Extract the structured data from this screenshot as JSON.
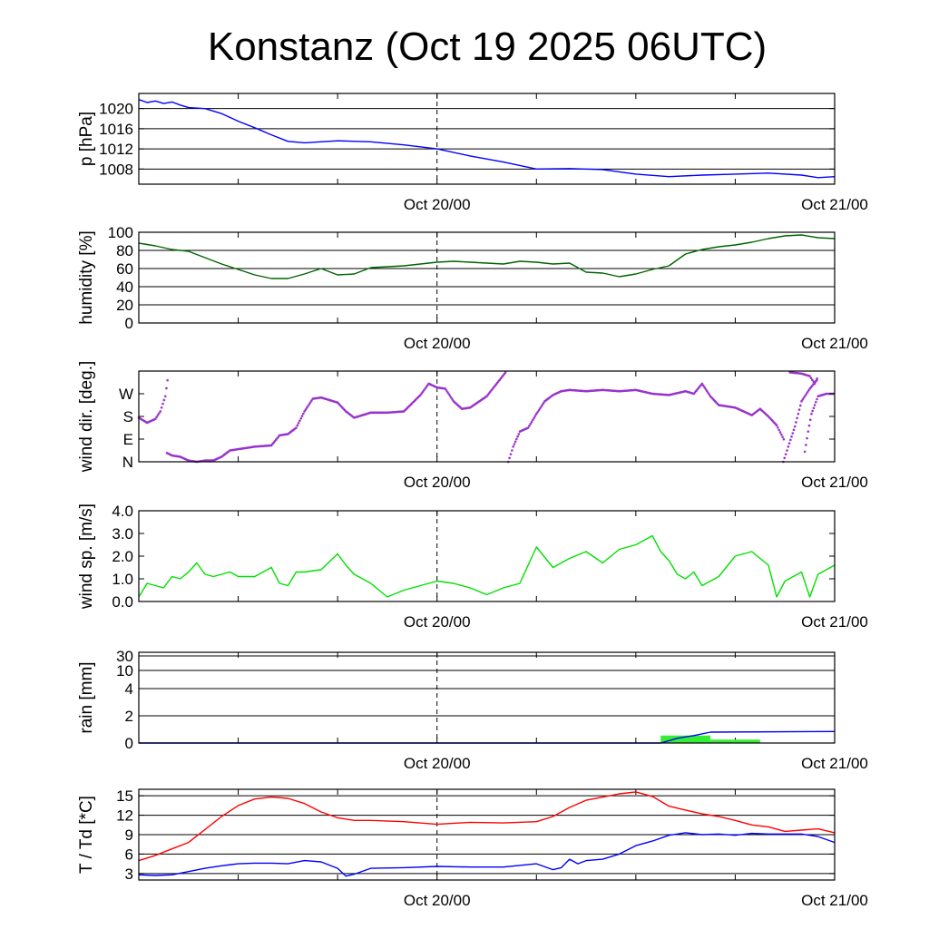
{
  "page": {
    "title": "Konstanz (Oct 19 2025 06UTC)"
  },
  "chart_data": [
    {
      "id": "pressure",
      "type": "line",
      "ylabel": "p [hPa]",
      "ylim": [
        1005,
        1023
      ],
      "yticks": [
        1008,
        1012,
        1016,
        1020
      ],
      "xlim": [
        0,
        42
      ],
      "x_ticks": [
        {
          "x": 18,
          "label": "Oct 20/00"
        },
        {
          "x": 42,
          "label": "Oct 21/00"
        }
      ],
      "grid": true,
      "series": [
        {
          "color": "#0000ff",
          "x": [
            0,
            0.5,
            1,
            1.5,
            2,
            2.5,
            3,
            4,
            5,
            6,
            7,
            8,
            9,
            10,
            12,
            14,
            16,
            18,
            20,
            22,
            24,
            26,
            28,
            30,
            32,
            34,
            36,
            38,
            40,
            41,
            42
          ],
          "y": [
            1021.8,
            1021.2,
            1021.5,
            1021.0,
            1021.3,
            1020.7,
            1020.2,
            1020.0,
            1019.0,
            1017.5,
            1016.2,
            1014.8,
            1013.5,
            1013.2,
            1013.6,
            1013.4,
            1012.8,
            1012.0,
            1010.6,
            1009.4,
            1008.0,
            1008.1,
            1007.9,
            1007.0,
            1006.5,
            1006.8,
            1007.0,
            1007.2,
            1006.8,
            1006.3,
            1006.5
          ]
        }
      ]
    },
    {
      "id": "humidity",
      "type": "line",
      "ylabel": "humidity [%]",
      "ylim": [
        0,
        100
      ],
      "yticks": [
        0,
        20,
        40,
        60,
        80,
        100
      ],
      "xlim": [
        0,
        42
      ],
      "x_ticks": [
        {
          "x": 18,
          "label": "Oct 20/00"
        },
        {
          "x": 42,
          "label": "Oct 21/00"
        }
      ],
      "grid": true,
      "series": [
        {
          "color": "#006400",
          "x": [
            0,
            1,
            2,
            3,
            4,
            5,
            6,
            7,
            8,
            9,
            10,
            11,
            12,
            13,
            14,
            16,
            18,
            19,
            20,
            22,
            23,
            24,
            25,
            26,
            27,
            28,
            29,
            30,
            31,
            32,
            33,
            34,
            35,
            36,
            37,
            38,
            39,
            40,
            41,
            42
          ],
          "y": [
            88,
            85,
            81,
            79,
            72,
            65,
            59,
            53,
            49,
            49,
            54,
            60,
            53,
            54,
            61,
            63,
            67,
            68,
            67,
            65,
            68,
            67,
            65,
            66,
            56,
            55,
            51,
            54,
            59,
            63,
            76,
            81,
            84,
            86,
            89,
            93,
            96,
            97,
            94,
            93
          ]
        }
      ]
    },
    {
      "id": "wind_dir",
      "type": "scatter",
      "ylabel": "wind dir. [deg.]",
      "ylim": [
        0,
        360
      ],
      "yticks": [
        0,
        90,
        180,
        270
      ],
      "ytick_labels": [
        "N",
        "E",
        "S",
        "W"
      ],
      "xlim": [
        0,
        42
      ],
      "x_ticks": [
        {
          "x": 18,
          "label": "Oct 20/00"
        },
        {
          "x": 42,
          "label": "Oct 21/00"
        }
      ],
      "grid": false,
      "series": [
        {
          "color": "#9933cc",
          "x": [
            0,
            0.5,
            1,
            1.3,
            1.6,
            1.8
          ],
          "y": [
            175,
            155,
            170,
            200,
            260,
            355
          ]
        },
        {
          "color": "#9933cc",
          "x": [
            1.7,
            2,
            2.5,
            3,
            3.5,
            4,
            4.5,
            5,
            5.5,
            6,
            7,
            8,
            8.5,
            9,
            9.5,
            10,
            10.5,
            11,
            11.5,
            12,
            12.5,
            13,
            14,
            15,
            16,
            17,
            17.5,
            18,
            18.5,
            19,
            19.5,
            20,
            21,
            22.2
          ],
          "y": [
            35,
            25,
            20,
            5,
            0,
            5,
            5,
            20,
            45,
            50,
            60,
            65,
            105,
            110,
            135,
            200,
            250,
            255,
            245,
            235,
            200,
            175,
            195,
            195,
            200,
            265,
            310,
            295,
            290,
            240,
            210,
            215,
            260,
            360
          ]
        },
        {
          "color": "#9933cc",
          "x": [
            22.3,
            22.6,
            23,
            23.5,
            24,
            24.5,
            25,
            25.5,
            26,
            27,
            28,
            29,
            30,
            31,
            32,
            33,
            33.5,
            34,
            34.5,
            35,
            36,
            37,
            37.5,
            38,
            38.5,
            39
          ],
          "y": [
            0,
            60,
            120,
            135,
            190,
            240,
            265,
            280,
            285,
            280,
            285,
            280,
            285,
            270,
            265,
            280,
            270,
            310,
            260,
            225,
            215,
            185,
            210,
            180,
            145,
            80
          ]
        },
        {
          "color": "#9933cc",
          "x": [
            38.9,
            39.2,
            39.6,
            40,
            40.5,
            41
          ],
          "y": [
            0,
            60,
            140,
            240,
            290,
            330
          ]
        },
        {
          "color": "#9933cc",
          "x": [
            39.3,
            40,
            40.5,
            40.8,
            41
          ],
          "y": [
            355,
            350,
            340,
            310,
            340
          ]
        },
        {
          "color": "#9933cc",
          "x": [
            40.2,
            40.4,
            40.6,
            41,
            41.5,
            42
          ],
          "y": [
            40,
            120,
            190,
            260,
            270,
            270
          ]
        }
      ]
    },
    {
      "id": "wind_speed",
      "type": "line",
      "ylabel": "wind sp. [m/s]",
      "ylim": [
        0,
        4
      ],
      "yticks": [
        0,
        1,
        2,
        3,
        4
      ],
      "ytick_labels": [
        "0.0",
        "1.0",
        "2.0",
        "3.0",
        "4.0"
      ],
      "xlim": [
        0,
        42
      ],
      "x_ticks": [
        {
          "x": 18,
          "label": "Oct 20/00"
        },
        {
          "x": 42,
          "label": "Oct 21/00"
        }
      ],
      "grid": false,
      "series": [
        {
          "color": "#00e000",
          "x": [
            0,
            0.5,
            1,
            1.5,
            2,
            2.5,
            3,
            3.5,
            4,
            4.5,
            5,
            5.5,
            6,
            7,
            8,
            8.5,
            9,
            9.5,
            10,
            11,
            12,
            12.5,
            13,
            14,
            15,
            16,
            17,
            17.5,
            18,
            19,
            20,
            21,
            22,
            23,
            24,
            25,
            25.5,
            26,
            27,
            28,
            29,
            30,
            31,
            31.5,
            32,
            32.5,
            33,
            33.5,
            34,
            35,
            36,
            37,
            38,
            38.5,
            39,
            40,
            40.5,
            41,
            42
          ],
          "y": [
            0.2,
            0.8,
            0.7,
            0.6,
            1.1,
            1.0,
            1.3,
            1.7,
            1.2,
            1.1,
            1.2,
            1.3,
            1.1,
            1.1,
            1.5,
            0.8,
            0.7,
            1.3,
            1.3,
            1.4,
            2.1,
            1.6,
            1.2,
            0.8,
            0.2,
            0.5,
            0.7,
            0.8,
            0.9,
            0.8,
            0.6,
            0.3,
            0.6,
            0.8,
            2.4,
            1.5,
            1.7,
            1.9,
            2.2,
            1.7,
            2.3,
            2.5,
            2.9,
            2.2,
            1.8,
            1.2,
            1.0,
            1.3,
            0.7,
            1.1,
            2.0,
            2.2,
            1.6,
            0.2,
            0.9,
            1.3,
            0.2,
            1.2,
            1.6
          ]
        }
      ]
    },
    {
      "id": "rain",
      "type": "bar",
      "ylabel": "rain [mm]",
      "ylim": [
        0,
        30
      ],
      "yticks": [
        0,
        2,
        4,
        10,
        30
      ],
      "ytick_labels": [
        "0",
        "2",
        "4",
        "10",
        "30"
      ],
      "ytick_positions": [
        0,
        0.3,
        0.6,
        0.8,
        0.96
      ],
      "xlim": [
        0,
        42
      ],
      "x_ticks": [
        {
          "x": 18,
          "label": "Oct 20/00"
        },
        {
          "x": 42,
          "label": "Oct 21/00"
        }
      ],
      "grid": true,
      "bars": [
        {
          "x0": 31.5,
          "x1": 34.5,
          "value": 0.55
        },
        {
          "x0": 34.5,
          "x1": 37.5,
          "value": 0.25
        }
      ],
      "bar_color": "#33ee33",
      "series": [
        {
          "color": "#0000ff",
          "x": [
            0,
            31.5,
            32.5,
            33.5,
            34.5,
            42
          ],
          "y": [
            0,
            0,
            0.35,
            0.55,
            0.8,
            0.85
          ]
        }
      ]
    },
    {
      "id": "temperature",
      "type": "line",
      "ylabel": "T / Td [*C]",
      "ylim": [
        2,
        16
      ],
      "yticks": [
        3,
        6,
        9,
        12,
        15
      ],
      "xlim": [
        0,
        42
      ],
      "x_ticks": [
        {
          "x": 18,
          "label": "Oct 20/00"
        },
        {
          "x": 42,
          "label": "Oct 21/00"
        }
      ],
      "grid": true,
      "series": [
        {
          "color": "#ff0000",
          "x": [
            0,
            1,
            2,
            3,
            4,
            5,
            6,
            7,
            8,
            9,
            10,
            11,
            12,
            13,
            14,
            16,
            18,
            20,
            22,
            24,
            25,
            26,
            27,
            28,
            29,
            30,
            31,
            32,
            33,
            34,
            35,
            36,
            37,
            38,
            39,
            40,
            41,
            42
          ],
          "y": [
            5.0,
            5.8,
            6.8,
            7.8,
            9.8,
            11.8,
            13.5,
            14.5,
            14.8,
            14.6,
            13.8,
            12.5,
            11.6,
            11.2,
            11.2,
            11.0,
            10.6,
            10.9,
            10.8,
            11.0,
            11.8,
            13.2,
            14.3,
            14.8,
            15.3,
            15.6,
            14.9,
            13.4,
            12.8,
            12.2,
            11.8,
            11.2,
            10.5,
            10.2,
            9.5,
            9.7,
            9.9,
            9.3
          ]
        },
        {
          "color": "#0000ff",
          "x": [
            0,
            1,
            2,
            3,
            4,
            5,
            6,
            7,
            8,
            9,
            10,
            11,
            12,
            12.5,
            13,
            14,
            16,
            18,
            20,
            22,
            24,
            25,
            25.5,
            26,
            26.5,
            27,
            28,
            29,
            30,
            31,
            32,
            33,
            34,
            35,
            36,
            37,
            38,
            39,
            40,
            41,
            42
          ],
          "y": [
            2.8,
            2.7,
            2.8,
            3.3,
            3.8,
            4.2,
            4.5,
            4.6,
            4.6,
            4.5,
            5.0,
            4.8,
            3.8,
            2.6,
            2.9,
            3.8,
            3.9,
            4.1,
            4.0,
            4.0,
            4.5,
            3.6,
            3.9,
            5.2,
            4.5,
            5.0,
            5.2,
            6.0,
            7.3,
            8.0,
            8.9,
            9.3,
            9.0,
            9.1,
            8.9,
            9.2,
            9.1,
            9.1,
            9.1,
            8.7,
            7.8
          ]
        }
      ]
    }
  ]
}
